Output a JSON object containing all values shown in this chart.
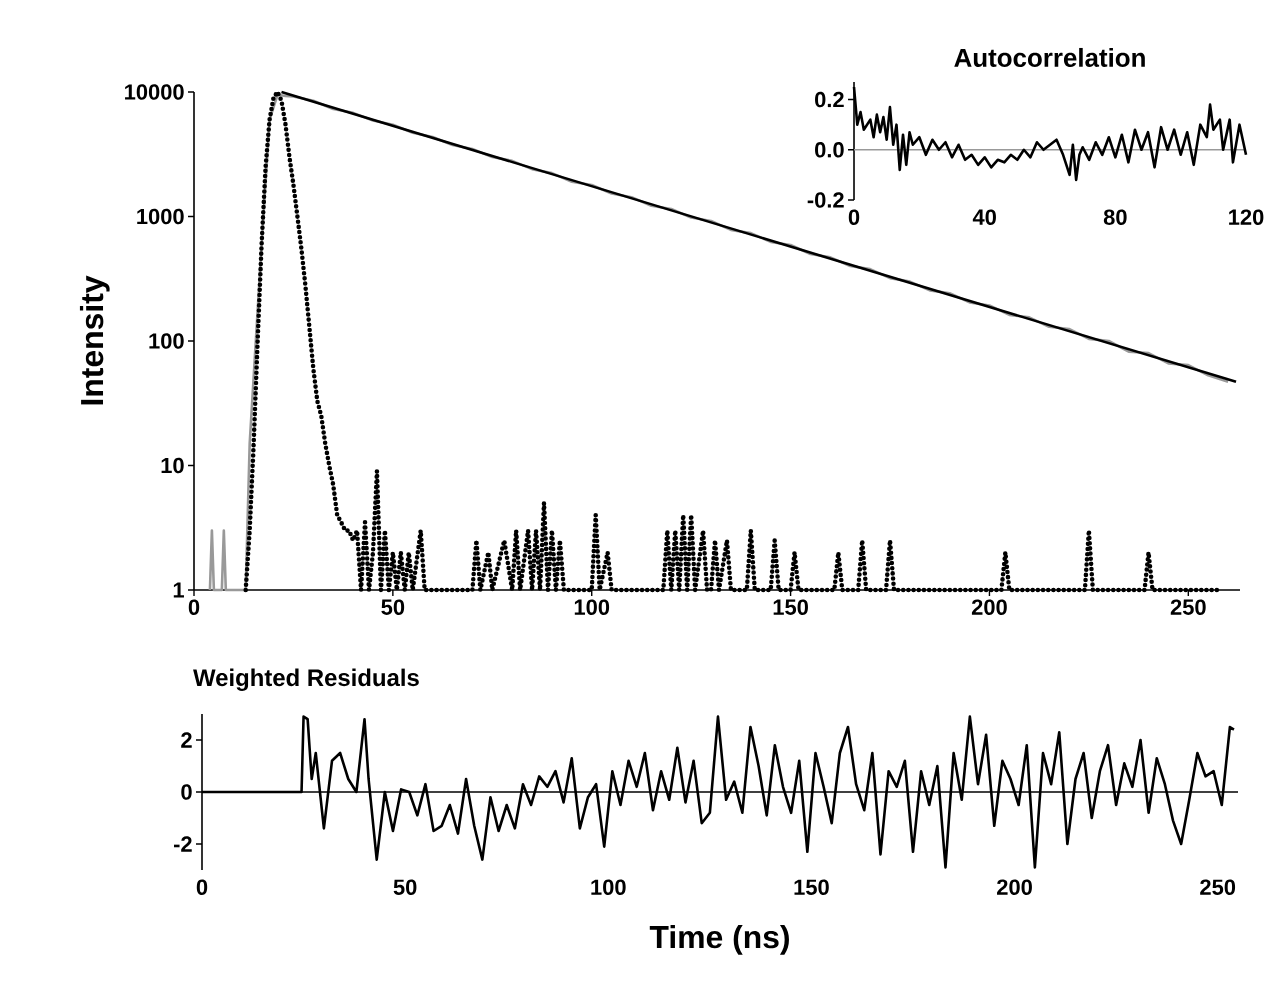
{
  "chart_data": [
    {
      "type": "line",
      "ylabel": "Intensity",
      "log": "y",
      "xlim": [
        0,
        263
      ],
      "ylim": [
        1,
        10000
      ],
      "xticks": [
        0,
        50,
        100,
        150,
        200,
        250
      ],
      "yticks": [
        1,
        10,
        100,
        1000,
        10000
      ],
      "series": [
        {
          "color": "#999999",
          "x": [
            4,
            4.5,
            5,
            7,
            7.5,
            8,
            13,
            14,
            17,
            19,
            21,
            23,
            25,
            30,
            35,
            40,
            45,
            50,
            55,
            60,
            65,
            70,
            75,
            80,
            85,
            90,
            95,
            100,
            105,
            110,
            115,
            120,
            125,
            130,
            135,
            140,
            145,
            150,
            155,
            160,
            165,
            170,
            175,
            180,
            185,
            190,
            195,
            200,
            205,
            210,
            215,
            220,
            225,
            230,
            235,
            240,
            245,
            250,
            255,
            260
          ],
          "values": [
            1,
            3,
            1,
            1,
            3,
            1,
            1,
            15,
            600,
            6000,
            9500,
            9300,
            9200,
            8500,
            7300,
            6800,
            5900,
            5450,
            4700,
            4350,
            3750,
            3480,
            3000,
            2800,
            2400,
            2230,
            1900,
            1790,
            1530,
            1430,
            1220,
            1150,
            980,
            920,
            780,
            735,
            625,
            590,
            500,
            470,
            400,
            378,
            320,
            300,
            255,
            242,
            204,
            193,
            162,
            155,
            130,
            125,
            104,
            100,
            82,
            80,
            66,
            64,
            53,
            47
          ]
        },
        {
          "color": "#000000",
          "x": [
            22,
            262
          ],
          "values": [
            10000,
            47
          ]
        },
        {
          "color": "#000000",
          "line_style": "dotted",
          "x": [
            13,
            14,
            15,
            16,
            17,
            18,
            19,
            20,
            21,
            22,
            23,
            24,
            25,
            26,
            27,
            28,
            29,
            30,
            31,
            32,
            33,
            34,
            35,
            36,
            37,
            38,
            39,
            40,
            41,
            42,
            43,
            44,
            45,
            46,
            47,
            48,
            49,
            50,
            51,
            52,
            53,
            54,
            55,
            57,
            58,
            60,
            70,
            71,
            72,
            74,
            75,
            78,
            80,
            81,
            82,
            84,
            85,
            86,
            87,
            88,
            89,
            90,
            91,
            92,
            93,
            100,
            101,
            102,
            104,
            105,
            118,
            119,
            120,
            121,
            122,
            123,
            124,
            125,
            126,
            128,
            129,
            130,
            131,
            132,
            134,
            135,
            139,
            140,
            141,
            145,
            146,
            147,
            150,
            151,
            152,
            161,
            162,
            163,
            167,
            168,
            169,
            174,
            175,
            176,
            193,
            203,
            204,
            205,
            224,
            225,
            226,
            239,
            240,
            241,
            258
          ],
          "values": [
            1,
            3,
            15,
            100,
            600,
            2500,
            6000,
            9000,
            10000,
            8500,
            5500,
            3000,
            1800,
            1000,
            550,
            280,
            130,
            60,
            33,
            25,
            15,
            10,
            7,
            4,
            3.5,
            3,
            3,
            2.5,
            3,
            1,
            3.5,
            1,
            2,
            9,
            1,
            3,
            1,
            2,
            1,
            2,
            1,
            2,
            1,
            3,
            1,
            1,
            1,
            2.5,
            1,
            2,
            1,
            2.5,
            1,
            3,
            1,
            3,
            1,
            3,
            1,
            5,
            1,
            3,
            1,
            2.5,
            1,
            1,
            4,
            1,
            2,
            1,
            1,
            3,
            1,
            3,
            1,
            4,
            1,
            4,
            1,
            3,
            1,
            1,
            2.5,
            1,
            2.5,
            1,
            1,
            3,
            1,
            1,
            2.5,
            1,
            1,
            2,
            1,
            1,
            2,
            1,
            1,
            2.5,
            1,
            1,
            2.5,
            1,
            1,
            1,
            2,
            1,
            1,
            3,
            1,
            1,
            2,
            1,
            1
          ]
        }
      ]
    },
    {
      "type": "line",
      "title": "Autocorrelation",
      "xlim": [
        0,
        120
      ],
      "ylim": [
        -0.2,
        0.27
      ],
      "xticks": [
        0,
        40,
        80,
        120
      ],
      "yticks": [
        -0.2,
        {
          "value": 0,
          "label": "0.0"
        },
        0.2
      ],
      "ref_lines": [
        {
          "axis": "y",
          "value": 0,
          "color": "#999999"
        }
      ],
      "series": [
        {
          "color": "#000000",
          "x": [
            0,
            1,
            2,
            3,
            5,
            6,
            7,
            8,
            9,
            10,
            11,
            12,
            13,
            14,
            15,
            16,
            17,
            18,
            20,
            22,
            24,
            26,
            28,
            30,
            32,
            34,
            36,
            38,
            40,
            42,
            44,
            46,
            48,
            50,
            52,
            54,
            56,
            58,
            60,
            62,
            64,
            66,
            67,
            68,
            69,
            70,
            72,
            74,
            76,
            78,
            80,
            82,
            84,
            86,
            88,
            90,
            92,
            94,
            96,
            98,
            100,
            102,
            104,
            106,
            108,
            109,
            110,
            112,
            113,
            115,
            116,
            118,
            120
          ],
          "values": [
            0.25,
            0.1,
            0.15,
            0.08,
            0.12,
            0.05,
            0.14,
            0.07,
            0.13,
            0.04,
            0.17,
            0.02,
            0.1,
            -0.08,
            0.06,
            -0.06,
            0.07,
            0.02,
            0.05,
            -0.02,
            0.04,
            0,
            0.03,
            -0.03,
            0.02,
            -0.04,
            -0.02,
            -0.06,
            -0.03,
            -0.07,
            -0.04,
            -0.05,
            -0.02,
            -0.04,
            0,
            -0.03,
            0.03,
            0,
            0.02,
            0.04,
            -0.02,
            -0.1,
            0.02,
            -0.12,
            -0.02,
            0.01,
            -0.04,
            0.03,
            -0.02,
            0.05,
            -0.03,
            0.06,
            -0.05,
            0.08,
            0,
            0.07,
            -0.07,
            0.09,
            0,
            0.08,
            -0.02,
            0.07,
            -0.06,
            0.1,
            0.05,
            0.18,
            0.08,
            0.12,
            0,
            0.12,
            -0.05,
            0.1,
            -0.02
          ]
        }
      ]
    },
    {
      "type": "line",
      "title": "Weighted Residuals",
      "xlabel": "Time (ns)",
      "xlim": [
        0,
        255
      ],
      "ylim": [
        -3,
        3
      ],
      "xticks": [
        0,
        50,
        100,
        150,
        200,
        250
      ],
      "yticks": [
        -2,
        0,
        2
      ],
      "ref_lines": [
        {
          "axis": "y",
          "value": 0,
          "color": "#000000"
        }
      ],
      "series": [
        {
          "color": "#000000",
          "x": [
            0,
            24.5,
            25,
            26,
            27,
            28,
            30,
            32,
            34,
            36,
            38,
            40,
            41,
            43,
            45,
            47,
            49,
            51,
            53,
            55,
            57,
            59,
            61,
            63,
            65,
            67,
            69,
            71,
            73,
            75,
            77,
            79,
            81,
            83,
            85,
            87,
            89,
            91,
            93,
            95,
            97,
            99,
            101,
            103,
            105,
            107,
            109,
            111,
            113,
            115,
            117,
            119,
            121,
            123,
            125,
            127,
            129,
            131,
            133,
            135,
            137,
            139,
            141,
            143,
            145,
            147,
            149,
            151,
            153,
            155,
            157,
            159,
            161,
            163,
            165,
            167,
            169,
            171,
            173,
            175,
            177,
            179,
            181,
            183,
            185,
            187,
            189,
            191,
            193,
            195,
            197,
            199,
            201,
            203,
            205,
            207,
            209,
            211,
            213,
            215,
            217,
            219,
            221,
            223,
            225,
            227,
            229,
            231,
            233,
            235,
            237,
            239,
            241,
            243,
            245,
            247,
            249,
            251,
            253,
            254
          ],
          "values": [
            0,
            0,
            2.9,
            2.8,
            0.5,
            1.5,
            -1.4,
            1.2,
            1.5,
            0.5,
            0,
            2.8,
            0.5,
            -2.6,
            0,
            -1.5,
            0.1,
            0,
            -0.9,
            0.3,
            -1.5,
            -1.3,
            -0.5,
            -1.6,
            0.5,
            -1.3,
            -2.6,
            -0.2,
            -1.5,
            -0.5,
            -1.4,
            0.3,
            -0.5,
            0.6,
            0.2,
            0.8,
            -0.4,
            1.3,
            -1.4,
            -0.2,
            0.3,
            -2.1,
            0.8,
            -0.5,
            1.2,
            0.2,
            1.5,
            -0.7,
            0.8,
            -0.3,
            1.7,
            -0.4,
            1.2,
            -1.2,
            -0.8,
            2.9,
            -0.3,
            0.4,
            -0.8,
            2.5,
            1,
            -0.9,
            1.8,
            0.2,
            -0.8,
            1.2,
            -2.3,
            1.5,
            0.2,
            -1.2,
            1.5,
            2.5,
            0.3,
            -0.7,
            1.5,
            -2.4,
            0.8,
            0.2,
            1.2,
            -2.3,
            0.8,
            -0.5,
            1,
            -2.9,
            1.5,
            -0.3,
            2.9,
            0.3,
            2.2,
            -1.3,
            1.2,
            0.5,
            -0.5,
            1.8,
            -2.9,
            1.5,
            0.3,
            2.3,
            -2,
            0.5,
            1.5,
            -1,
            0.8,
            1.8,
            -0.5,
            1.1,
            0.2,
            2,
            -0.8,
            1.3,
            0.3,
            -1.1,
            -2,
            -0.3,
            1.5,
            0.6,
            0.8,
            -0.5,
            2.5,
            2.4
          ]
        }
      ]
    }
  ]
}
